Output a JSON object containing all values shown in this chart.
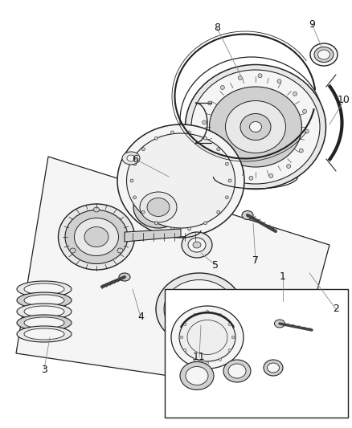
{
  "bg_color": "#ffffff",
  "fig_width": 4.38,
  "fig_height": 5.33,
  "dpi": 100,
  "line_color": "#222222",
  "dark_gray": "#444444",
  "med_gray": "#888888",
  "light_gray": "#cccccc",
  "part_fill": "#e8e8e8",
  "part_fill2": "#d0d0d0",
  "white_fill": "#f5f5f5"
}
